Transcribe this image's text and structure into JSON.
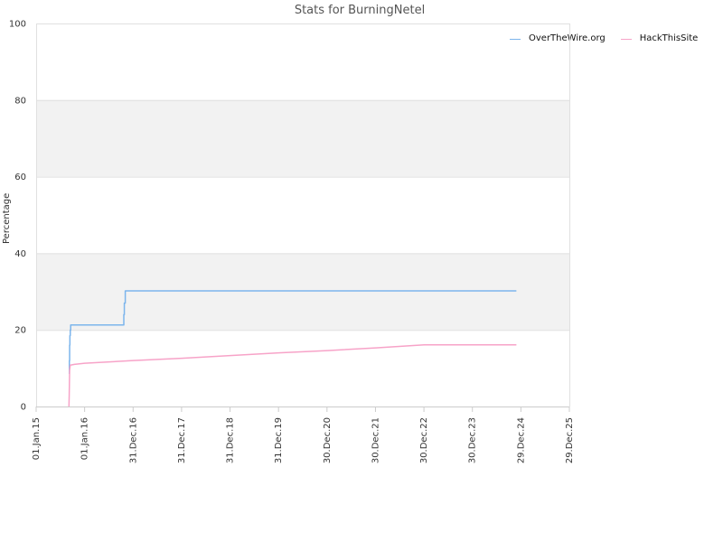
{
  "chart_data": {
    "type": "line",
    "title": "Stats for BurningNetel",
    "xlabel": "",
    "ylabel": "Percentage",
    "ylim": [
      0,
      100
    ],
    "xlim": [
      "2015-01-01",
      "2025-12-29"
    ],
    "y_ticks": [
      0,
      20,
      40,
      60,
      80,
      100
    ],
    "y_tick_labels": [
      "0",
      "20",
      "40",
      "60",
      "80",
      "100"
    ],
    "x_ticks": [
      "2015-01-01",
      "2016-01-01",
      "2016-12-31",
      "2017-12-31",
      "2018-12-31",
      "2019-12-31",
      "2020-12-30",
      "2021-12-30",
      "2022-12-30",
      "2023-12-30",
      "2024-12-29",
      "2025-12-29"
    ],
    "x_tick_labels": [
      "01.Jan.15",
      "01.Jan.16",
      "31.Dec.16",
      "31.Dec.17",
      "31.Dec.18",
      "31.Dec.19",
      "30.Dec.20",
      "30.Dec.21",
      "30.Dec.22",
      "30.Dec.23",
      "29.Dec.24",
      "29.Dec.25"
    ],
    "grid": "horizontal",
    "banded_background": true,
    "legend_position": "top-right",
    "series": [
      {
        "name": "OverTheWire.org",
        "color": "#7cb5ec",
        "step": true,
        "points": [
          [
            "2015-09-07",
            8.5
          ],
          [
            "2015-09-08",
            12.0
          ],
          [
            "2015-09-10",
            16.0
          ],
          [
            "2015-09-12",
            18.5
          ],
          [
            "2015-09-15",
            20.0
          ],
          [
            "2015-09-18",
            21.3
          ],
          [
            "2016-10-20",
            21.3
          ],
          [
            "2016-10-22",
            24.0
          ],
          [
            "2016-10-26",
            27.0
          ],
          [
            "2016-11-02",
            30.2
          ],
          [
            "2024-11-25",
            30.2
          ]
        ]
      },
      {
        "name": "HackThisSite",
        "color": "#f7a3c8",
        "step": false,
        "points": [
          [
            "2015-09-05",
            0.0
          ],
          [
            "2015-09-07",
            3.0
          ],
          [
            "2015-09-10",
            9.5
          ],
          [
            "2015-09-15",
            10.8
          ],
          [
            "2015-10-15",
            11.0
          ],
          [
            "2016-01-01",
            11.3
          ],
          [
            "2017-01-01",
            12.0
          ],
          [
            "2018-01-01",
            12.6
          ],
          [
            "2019-01-01",
            13.3
          ],
          [
            "2020-01-01",
            14.0
          ],
          [
            "2021-01-01",
            14.6
          ],
          [
            "2022-01-01",
            15.3
          ],
          [
            "2023-01-01",
            16.1
          ],
          [
            "2024-01-01",
            16.1
          ],
          [
            "2024-11-25",
            16.1
          ]
        ]
      }
    ]
  }
}
